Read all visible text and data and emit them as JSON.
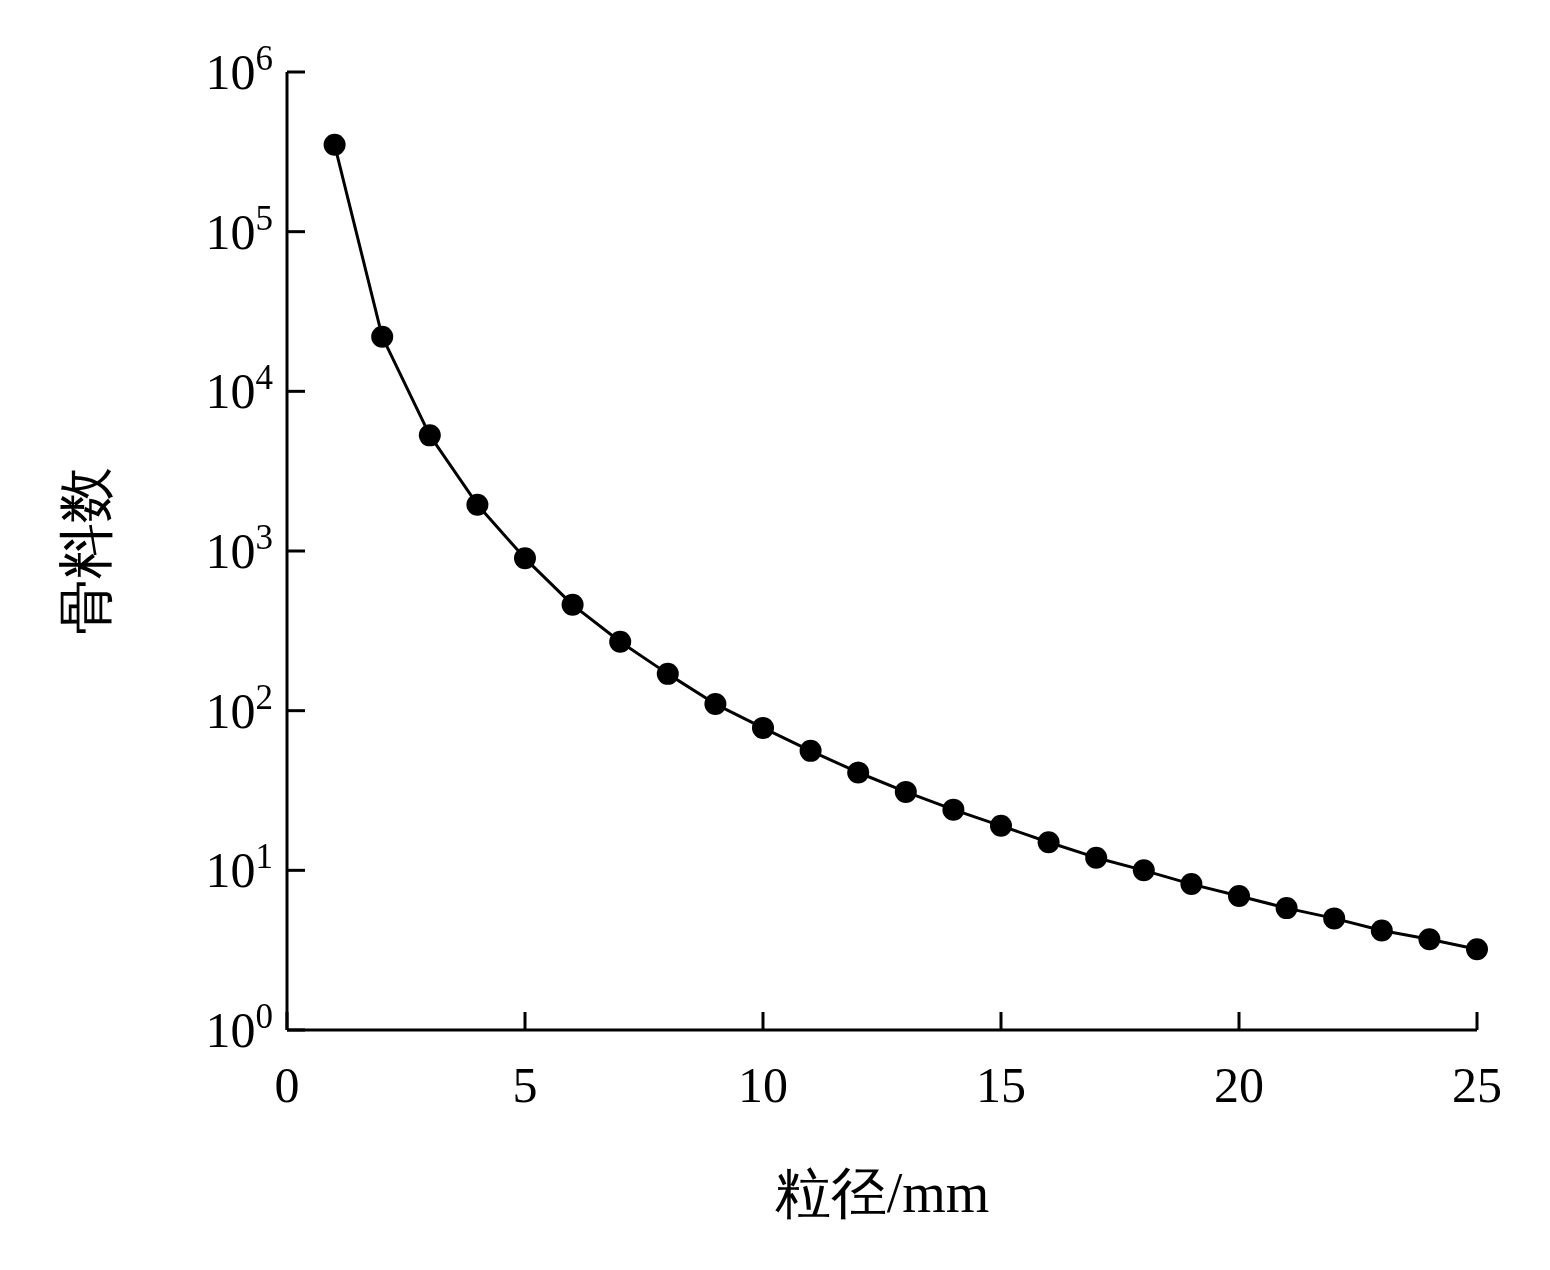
{
  "chart_data": {
    "type": "line",
    "xlabel": "粒径/mm",
    "ylabel": "骨料数",
    "log": "y",
    "marker": "circle",
    "line_style": "solid",
    "xlim": [
      0,
      25
    ],
    "xticks": [
      0,
      5,
      10,
      15,
      20,
      25
    ],
    "ylim": [
      1,
      1000000
    ],
    "yticks": [
      {
        "value": 1,
        "label": "10$^{0}$"
      },
      {
        "value": 10,
        "label": "10$^{1}$"
      },
      {
        "value": 100,
        "label": "10$^{2}$"
      },
      {
        "value": 1000,
        "label": "10$^{3}$"
      },
      {
        "value": 10000,
        "label": "10$^{4}$"
      },
      {
        "value": 100000,
        "label": "10$^{5}$"
      },
      {
        "value": 1000000,
        "label": "10$^{6}$"
      }
    ],
    "x": [
      1,
      2,
      3,
      4,
      5,
      6,
      7,
      8,
      9,
      10,
      11,
      12,
      13,
      14,
      15,
      16,
      17,
      18,
      19,
      20,
      21,
      22,
      23,
      24,
      25
    ],
    "series": [
      {
        "color": "#000000",
        "values": [
          350000,
          22000,
          5300,
          1950,
          900,
          460,
          270,
          170,
          110,
          78,
          56,
          41,
          31,
          24,
          19,
          15,
          12,
          10,
          8.2,
          6.9,
          5.8,
          5.0,
          4.2,
          3.7,
          3.2
        ]
      }
    ]
  }
}
